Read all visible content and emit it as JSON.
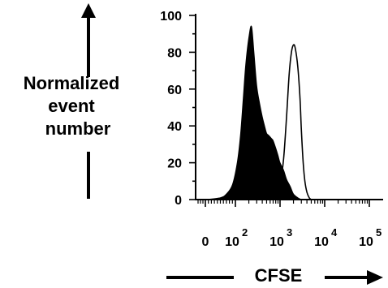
{
  "chart_data": {
    "type": "area",
    "ylabel_lines": [
      "Normalized",
      "event",
      "number"
    ],
    "xlabel": "CFSE",
    "yticks": [
      0,
      20,
      40,
      60,
      80,
      100
    ],
    "ylim": [
      0,
      100
    ],
    "xscale": "biexponential",
    "xtick_labels": [
      {
        "base": "0",
        "exp": ""
      },
      {
        "base": "10",
        "exp": "2"
      },
      {
        "base": "10",
        "exp": "3"
      },
      {
        "base": "10",
        "exp": "4"
      },
      {
        "base": "10",
        "exp": "5"
      }
    ],
    "grid": false,
    "legend": "none",
    "series": [
      {
        "style": "filled",
        "color": "#000000",
        "x": [
          0,
          50,
          70,
          90,
          110,
          130,
          150,
          170,
          200,
          230,
          260,
          300,
          350,
          400,
          450,
          500,
          550,
          600,
          650,
          700,
          800,
          900,
          1000,
          1200,
          1400,
          1700,
          2000,
          2500,
          3000
        ],
        "y": [
          0,
          1,
          3,
          8,
          20,
          35,
          55,
          73,
          88,
          94,
          80,
          62,
          52,
          45,
          40,
          36,
          35,
          34,
          33,
          32,
          28,
          24,
          20,
          16,
          11,
          7,
          3,
          1,
          0
        ]
      },
      {
        "style": "outline",
        "color": "#000000",
        "x": [
          800,
          1000,
          1200,
          1400,
          1600,
          1800,
          2000,
          2200,
          2500,
          2800,
          3000,
          3300,
          3600,
          4000,
          4500,
          5000
        ],
        "y": [
          0,
          8,
          22,
          45,
          68,
          80,
          84,
          82,
          72,
          55,
          38,
          20,
          10,
          4,
          1,
          0
        ]
      }
    ]
  }
}
